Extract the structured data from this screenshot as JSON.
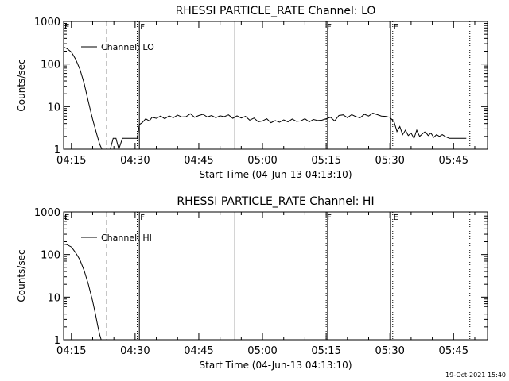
{
  "footer": {
    "timestamp": "19-Oct-2021 15:40"
  },
  "chart_data": [
    {
      "type": "line",
      "title": "RHESSI PARTICLE_RATE Channel: LO",
      "xlabel": "Start Time (04-Jun-13 04:13:10)",
      "ylabel": "Counts/sec",
      "y_scale": "log",
      "ylim": [
        1,
        1000
      ],
      "xlim": [
        "04:13:10",
        "05:53:00"
      ],
      "x_ticks": [
        "04:15",
        "04:30",
        "04:45",
        "05:00",
        "05:15",
        "05:30",
        "05:45"
      ],
      "y_ticks": [
        "1",
        "10",
        "100",
        "1000"
      ],
      "legend": {
        "position": "top-left",
        "entries": [
          "Channel: LO"
        ]
      },
      "markers": [
        {
          "label": "E",
          "time": "04:13:10",
          "style": "solid"
        },
        {
          "label": "",
          "time": "04:23:20",
          "style": "dashed"
        },
        {
          "label": "",
          "time": "04:30:30",
          "style": "dotted"
        },
        {
          "label": "F",
          "time": "04:31:00",
          "style": "solid"
        },
        {
          "label": "",
          "time": "04:53:30",
          "style": "solid"
        },
        {
          "label": "F",
          "time": "05:15:00",
          "style": "dotted"
        },
        {
          "label": "",
          "time": "05:15:20",
          "style": "solid"
        },
        {
          "label": "",
          "time": "05:30:10",
          "style": "solid"
        },
        {
          "label": "E",
          "time": "05:30:40",
          "style": "dotted"
        },
        {
          "label": "",
          "time": "05:48:50",
          "style": "dotted"
        }
      ],
      "series": [
        {
          "x": [
            "04:13:10",
            "04:14:00",
            "04:15:00",
            "04:16:00",
            "04:17:00",
            "04:18:00",
            "04:19:00",
            "04:20:00",
            "04:21:00",
            "04:21:40",
            "04:22:10",
            "04:23:00",
            "04:23:30",
            "04:24:10",
            "04:24:50",
            "04:25:30",
            "04:26:10",
            "04:27:00",
            "04:28:00",
            "04:29:00",
            "04:30:30",
            "04:31:00",
            "04:31:40",
            "04:32:30",
            "04:33:20",
            "04:34:00",
            "04:35:00",
            "04:36:00",
            "04:37:00",
            "04:38:00",
            "04:39:00",
            "04:40:00",
            "04:41:00",
            "04:42:00",
            "04:43:00",
            "04:44:00",
            "04:45:00",
            "04:46:00",
            "04:47:00",
            "04:48:00",
            "04:49:00",
            "04:50:00",
            "04:51:00",
            "04:52:00",
            "04:53:00",
            "04:54:00",
            "04:55:00",
            "04:56:00",
            "04:57:00",
            "04:58:00",
            "04:59:00",
            "05:00:00",
            "05:01:00",
            "05:02:00",
            "05:03:00",
            "05:04:00",
            "05:05:00",
            "05:06:00",
            "05:07:00",
            "05:08:00",
            "05:09:00",
            "05:10:00",
            "05:11:00",
            "05:12:00",
            "05:13:00",
            "05:14:00",
            "05:15:00",
            "05:16:00",
            "05:17:00",
            "05:18:00",
            "05:19:00",
            "05:20:00",
            "05:21:00",
            "05:22:00",
            "05:23:00",
            "05:24:00",
            "05:25:00",
            "05:26:00",
            "05:27:00",
            "05:28:00",
            "05:29:00",
            "05:30:00",
            "05:31:00",
            "05:31:40",
            "05:32:20",
            "05:33:00",
            "05:33:40",
            "05:34:20",
            "05:35:00",
            "05:35:40",
            "05:36:20",
            "05:37:00",
            "05:37:40",
            "05:38:20",
            "05:39:00",
            "05:39:40",
            "05:40:20",
            "05:41:00",
            "05:41:40",
            "05:42:20",
            "05:43:00",
            "05:44:00",
            "05:45:00",
            "05:46:00",
            "05:47:00",
            "05:48:00"
          ],
          "y": [
            250,
            230,
            190,
            130,
            75,
            35,
            13,
            5,
            2.2,
            1.3,
            1,
            1,
            1,
            1,
            1.8,
            1.8,
            1,
            1.8,
            1.8,
            1.8,
            1.8,
            3.8,
            4.2,
            5.2,
            4.6,
            5.6,
            5.3,
            6,
            5.2,
            6.1,
            5.5,
            6.3,
            5.7,
            5.8,
            6.8,
            5.6,
            6.2,
            6.6,
            5.7,
            6.2,
            5.5,
            6.1,
            5.8,
            6.4,
            5.3,
            6.1,
            5.4,
            5.9,
            4.8,
            5.4,
            4.4,
            4.6,
            5.2,
            4.2,
            4.7,
            4.3,
            4.9,
            4.4,
            5.1,
            4.5,
            4.6,
            5.2,
            4.4,
            5,
            4.7,
            4.8,
            5.2,
            5.6,
            4.6,
            6.2,
            6.4,
            5.5,
            6.5,
            5.8,
            5.5,
            6.6,
            6,
            7,
            6.5,
            6,
            5.9,
            5.6,
            4.4,
            2.6,
            3.4,
            2.2,
            2.8,
            2.1,
            2.4,
            1.8,
            2.8,
            2,
            2.3,
            2.6,
            2.1,
            2.4,
            1.9,
            2.2,
            2,
            2.2,
            2,
            1.8,
            1.8,
            1.8,
            1.8,
            1.8
          ]
        }
      ]
    },
    {
      "type": "line",
      "title": "RHESSI PARTICLE_RATE Channel: HI",
      "xlabel": "Start Time (04-Jun-13 04:13:10)",
      "ylabel": "Counts/sec",
      "y_scale": "log",
      "ylim": [
        1,
        1000
      ],
      "xlim": [
        "04:13:10",
        "05:53:00"
      ],
      "x_ticks": [
        "04:15",
        "04:30",
        "04:45",
        "05:00",
        "05:15",
        "05:30",
        "05:45"
      ],
      "y_ticks": [
        "1",
        "10",
        "100",
        "1000"
      ],
      "legend": {
        "position": "top-left",
        "entries": [
          "Channel: HI"
        ]
      },
      "markers": [
        {
          "label": "E",
          "time": "04:13:10",
          "style": "solid"
        },
        {
          "label": "",
          "time": "04:23:20",
          "style": "dashed"
        },
        {
          "label": "",
          "time": "04:30:30",
          "style": "dotted"
        },
        {
          "label": "F",
          "time": "04:31:00",
          "style": "solid"
        },
        {
          "label": "",
          "time": "04:53:30",
          "style": "solid"
        },
        {
          "label": "F",
          "time": "05:15:00",
          "style": "dotted"
        },
        {
          "label": "",
          "time": "05:15:20",
          "style": "solid"
        },
        {
          "label": "",
          "time": "05:30:10",
          "style": "solid"
        },
        {
          "label": "E",
          "time": "05:30:40",
          "style": "dotted"
        },
        {
          "label": "",
          "time": "05:48:50",
          "style": "dotted"
        }
      ],
      "series": [
        {
          "x": [
            "04:13:10",
            "04:14:00",
            "04:15:00",
            "04:16:00",
            "04:17:00",
            "04:18:00",
            "04:19:00",
            "04:20:00",
            "04:20:40",
            "04:21:10",
            "04:21:40",
            "04:22:00"
          ],
          "y": [
            175,
            170,
            150,
            110,
            75,
            42,
            20,
            8,
            4,
            2.2,
            1.3,
            1
          ]
        }
      ]
    }
  ]
}
